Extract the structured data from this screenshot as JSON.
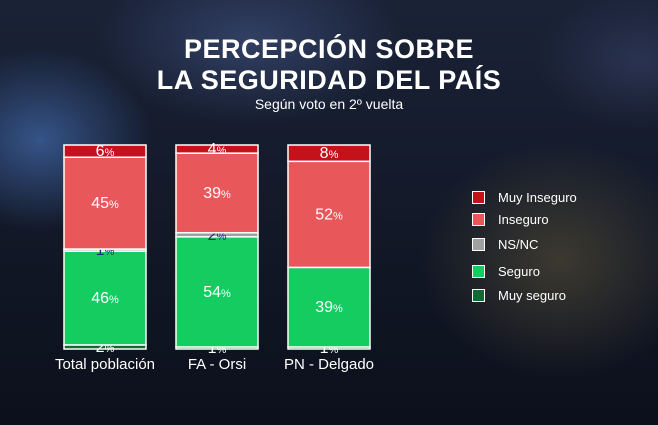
{
  "chart_data": {
    "type": "bar",
    "stacked": true,
    "title_line1": "PERCEPCIÓN SOBRE",
    "title_line2": "LA SEGURIDAD DEL PAÍS",
    "subtitle": "Según voto en 2º vuelta",
    "categories": [
      "Total población",
      "FA - Orsi",
      "PN - Delgado"
    ],
    "series": [
      {
        "name": "Muy seguro",
        "color": "#0f6b32",
        "values": [
          2,
          1,
          1
        ]
      },
      {
        "name": "Seguro",
        "color": "#14cc60",
        "values": [
          46,
          54,
          39
        ]
      },
      {
        "name": "NS/NC",
        "color": "#a0a0a0",
        "values": [
          1,
          2,
          0
        ]
      },
      {
        "name": "Inseguro",
        "color": "#e8575a",
        "values": [
          45,
          39,
          52
        ]
      },
      {
        "name": "Muy Inseguro",
        "color": "#c4121a",
        "values": [
          6,
          4,
          8
        ]
      }
    ],
    "legend": [
      "Muy Inseguro",
      "Inseguro",
      "NS/NC",
      "Seguro",
      "Muy seguro"
    ],
    "legend_position": "right",
    "data_label_suffix": "%"
  }
}
